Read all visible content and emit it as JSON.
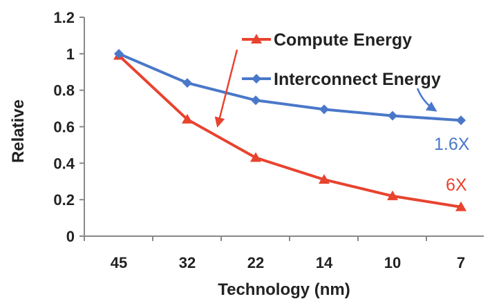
{
  "chart_data": {
    "type": "line",
    "title": "",
    "xlabel": "Technology (nm)",
    "ylabel": "Relative",
    "ylim": [
      0,
      1.2
    ],
    "yticks": [
      "0",
      "0.2",
      "0.4",
      "0.6",
      "0.8",
      "1",
      "1.2"
    ],
    "categories": [
      "45",
      "32",
      "22",
      "14",
      "10",
      "7"
    ],
    "grid": false,
    "legend": "top-right",
    "series": [
      {
        "name": "Compute Energy",
        "color": "#e8432e",
        "marker": "triangle",
        "values": [
          0.99,
          0.64,
          0.43,
          0.31,
          0.22,
          0.16
        ]
      },
      {
        "name": "Interconnect Energy",
        "color": "#4a78c9",
        "marker": "diamond",
        "values": [
          1.0,
          0.84,
          0.745,
          0.695,
          0.66,
          0.635
        ]
      }
    ],
    "annotations": [
      {
        "text": "1.6X",
        "series": "Interconnect Energy",
        "color": "#4a78c9"
      },
      {
        "text": "6X",
        "series": "Compute Energy",
        "color": "#e8432e"
      }
    ]
  }
}
